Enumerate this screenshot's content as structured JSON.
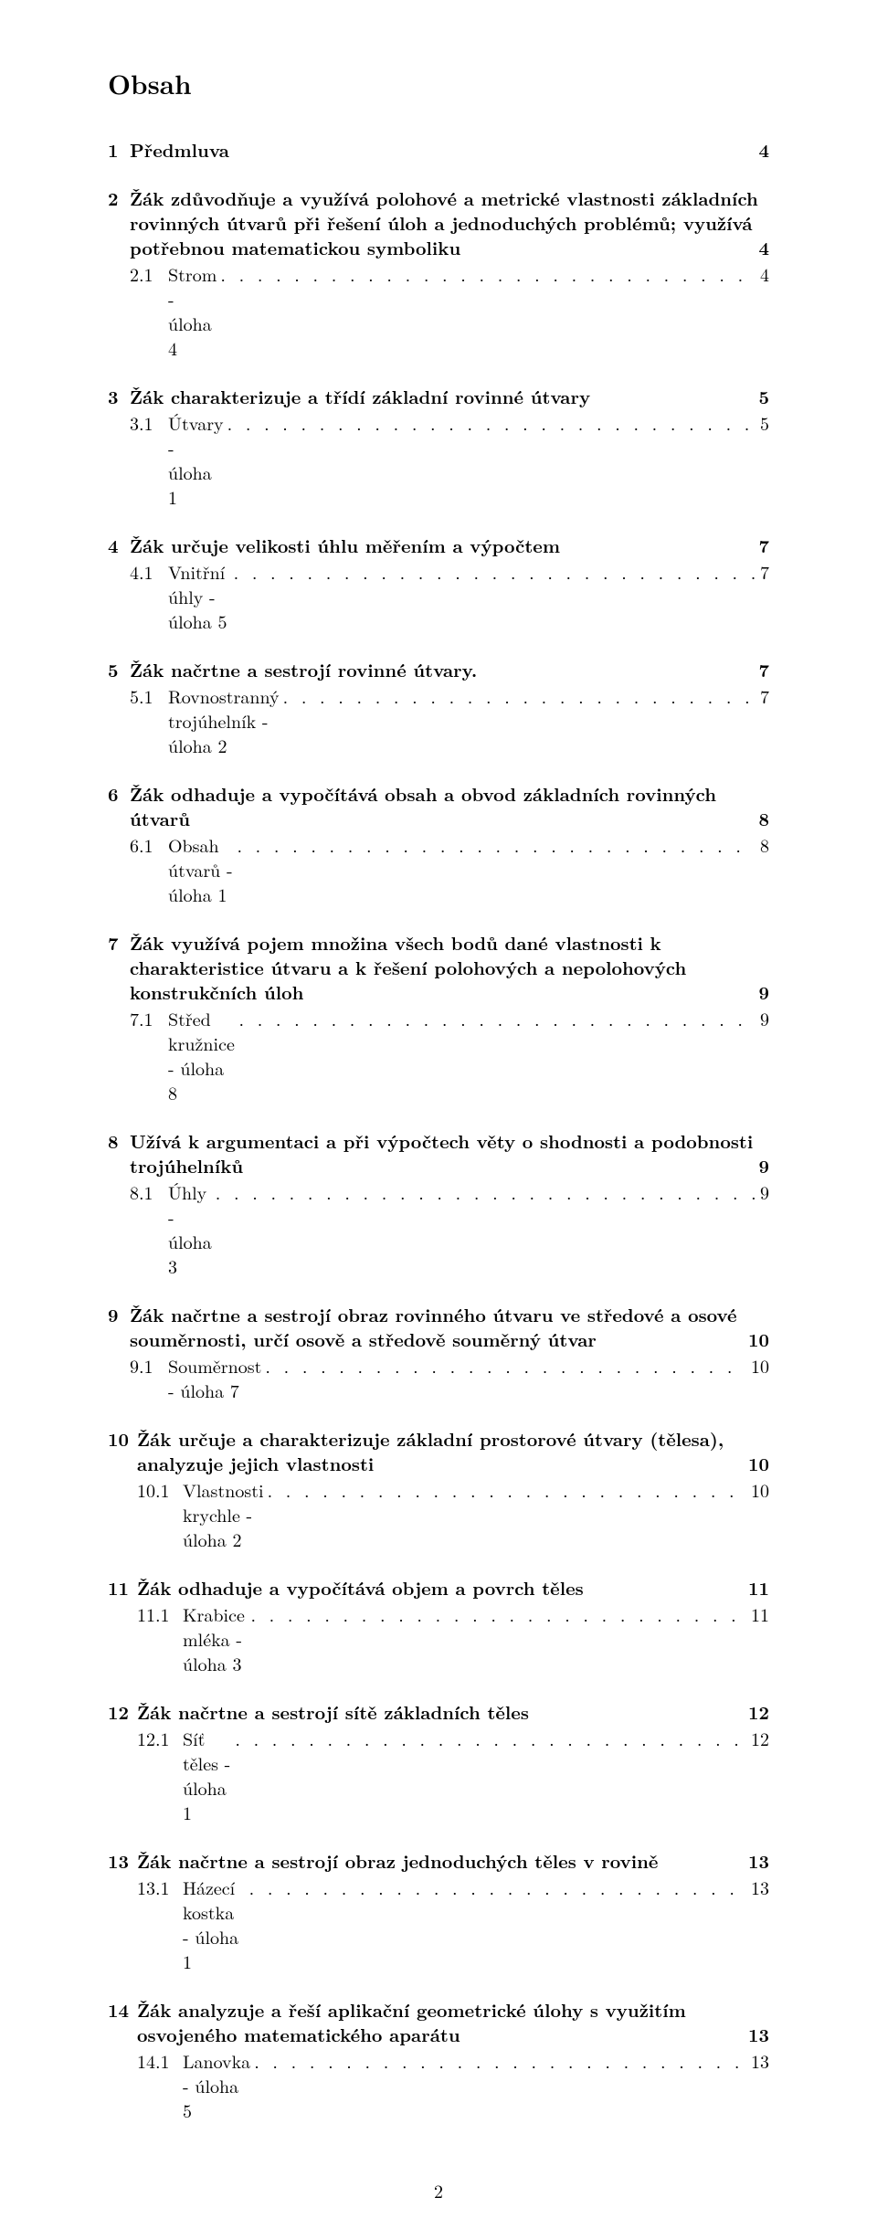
{
  "heading": "Obsah",
  "page_number": "2",
  "toc": [
    {
      "num": "1",
      "title": "Předmluva",
      "page": "4",
      "subs": []
    },
    {
      "num": "2",
      "title": "Žák zdůvodňuje a využívá polohové a metrické vlastnosti základních rovinných útvarů při řešení úloh a jednoduchých problémů; využívá potřebnou matematickou symboliku",
      "page": "4",
      "subs": [
        {
          "num": "2.1",
          "title": "Strom - úloha 4",
          "page": "4"
        }
      ]
    },
    {
      "num": "3",
      "title": "Žák charakterizuje a třídí základní rovinné útvary",
      "page": "5",
      "subs": [
        {
          "num": "3.1",
          "title": "Útvary - úloha 1",
          "page": "5"
        }
      ]
    },
    {
      "num": "4",
      "title": "Žák určuje velikosti úhlu měřením a výpočtem",
      "page": "7",
      "subs": [
        {
          "num": "4.1",
          "title": "Vnitřní úhly - úloha 5",
          "page": "7"
        }
      ]
    },
    {
      "num": "5",
      "title": "Žák načrtne a sestrojí rovinné útvary.",
      "page": "7",
      "subs": [
        {
          "num": "5.1",
          "title": "Rovnostranný trojúhelník - úloha 2",
          "page": "7"
        }
      ]
    },
    {
      "num": "6",
      "title": "Žák odhaduje a vypočítává obsah a obvod základních rovinných útvarů",
      "page": "8",
      "subs": [
        {
          "num": "6.1",
          "title": "Obsah útvarů - úloha 1",
          "page": "8"
        }
      ]
    },
    {
      "num": "7",
      "title": "Žák využívá pojem množina všech bodů dané vlastnosti k charakteristice útvaru a k řešení polohových a nepolohových konstrukčních úloh",
      "page": "9",
      "subs": [
        {
          "num": "7.1",
          "title": "Střed kružnice - úloha 8",
          "page": "9"
        }
      ]
    },
    {
      "num": "8",
      "title": "Užívá k argumentaci a při výpočtech věty o shodnosti a podobnosti trojúhelníků",
      "page": "9",
      "subs": [
        {
          "num": "8.1",
          "title": "Úhly - úloha 3",
          "page": "9"
        }
      ]
    },
    {
      "num": "9",
      "title": "Žák načrtne a sestrojí obraz rovinného útvaru ve středové a osové souměrnosti, určí osově a středově souměrný útvar",
      "page": "10",
      "subs": [
        {
          "num": "9.1",
          "title": "Souměrnost - úloha 7",
          "page": "10"
        }
      ]
    },
    {
      "num": "10",
      "title": "Žák určuje a charakterizuje základní prostorové útvary (tělesa), analyzuje jejich vlastnosti",
      "page": "10",
      "subs": [
        {
          "num": "10.1",
          "title": "Vlastnosti krychle - úloha 2",
          "page": "10"
        }
      ]
    },
    {
      "num": "11",
      "title": "Žák odhaduje a vypočítává objem a povrch těles",
      "page": "11",
      "subs": [
        {
          "num": "11.1",
          "title": "Krabice mléka - úloha 3",
          "page": "11"
        }
      ]
    },
    {
      "num": "12",
      "title": "Žák načrtne a sestrojí sítě základních těles",
      "page": "12",
      "subs": [
        {
          "num": "12.1",
          "title": "Síť těles - úloha 1",
          "page": "12"
        }
      ]
    },
    {
      "num": "13",
      "title": "Žák načrtne a sestrojí obraz jednoduchých těles v rovině",
      "page": "13",
      "subs": [
        {
          "num": "13.1",
          "title": "Házecí kostka - úloha 1",
          "page": "13"
        }
      ]
    },
    {
      "num": "14",
      "title": "Žák analyzuje a řeší aplikační geometrické úlohy s využitím osvojeného matematického aparátu",
      "page": "13",
      "subs": [
        {
          "num": "14.1",
          "title": "Lanovka - úloha 5",
          "page": "13"
        }
      ]
    }
  ]
}
